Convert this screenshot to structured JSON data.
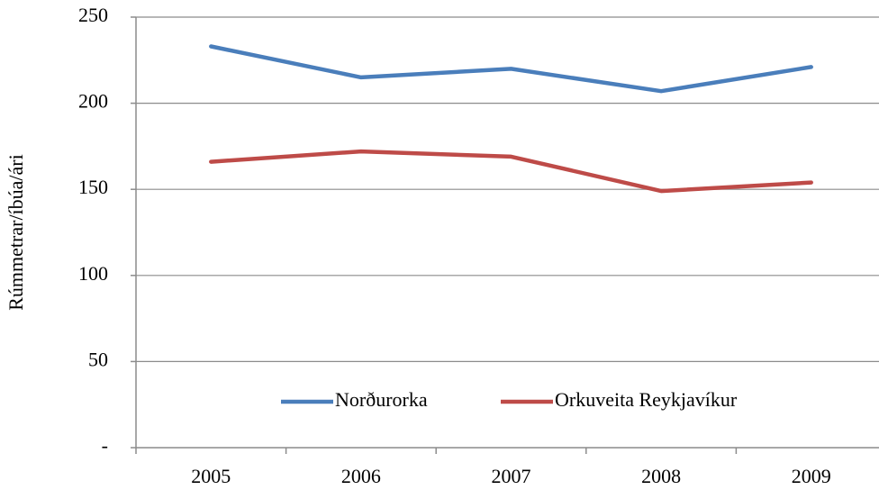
{
  "chart_data": {
    "type": "line",
    "y_label": "Rúmmetrar/íbúa/ári",
    "categories": [
      "2005",
      "2006",
      "2007",
      "2008",
      "2009"
    ],
    "series": [
      {
        "name": "Norðurorka",
        "color": "#4a7ebb",
        "values": [
          233,
          215,
          220,
          207,
          221
        ]
      },
      {
        "name": "Orkuveita Reykjavíkur",
        "color": "#be4b48",
        "values": [
          166,
          172,
          169,
          149,
          154
        ]
      }
    ],
    "ylim": [
      0,
      250
    ],
    "yticks": [
      {
        "value": 0,
        "label": "-"
      },
      50,
      100,
      150,
      200,
      250
    ],
    "grid": true,
    "legend": "bottom"
  }
}
